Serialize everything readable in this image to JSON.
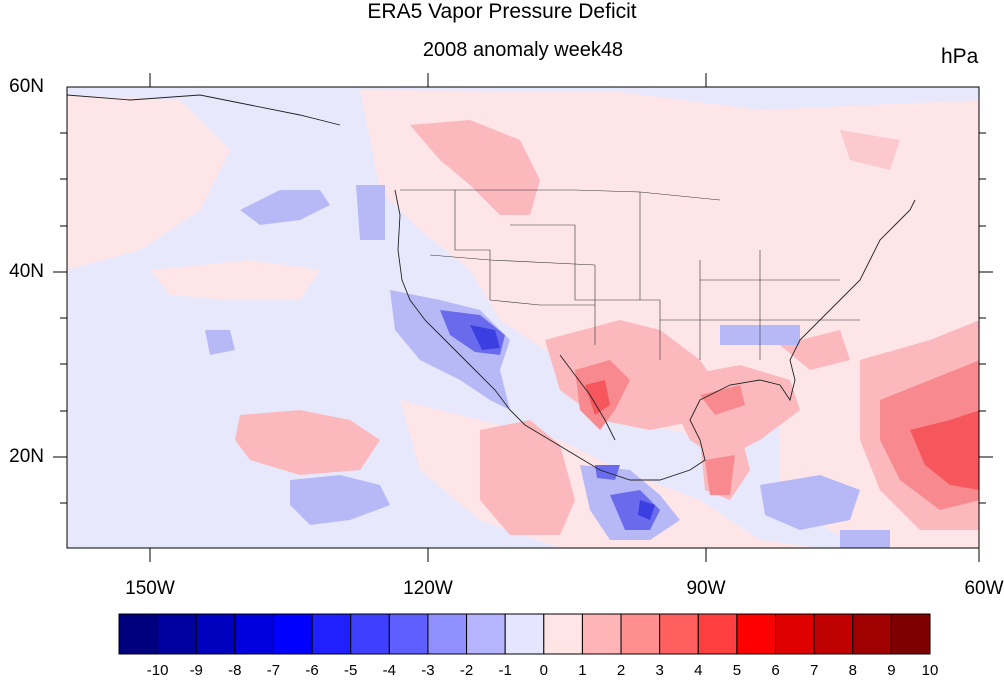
{
  "title": "ERA5 Vapor Pressure Deficit",
  "subtitle": "2008 anomaly week48",
  "units": "hPa",
  "lat_labels": [
    "60N",
    "40N",
    "20N"
  ],
  "lon_labels": [
    "150W",
    "120W",
    "90W",
    "60W"
  ],
  "colorbar": {
    "labels": [
      "-10",
      "-9",
      "-8",
      "-7",
      "-6",
      "-5",
      "-4",
      "-3",
      "-2",
      "-1",
      "0",
      "1",
      "2",
      "3",
      "4",
      "5",
      "6",
      "7",
      "8",
      "9",
      "10"
    ],
    "colors": [
      "#00007f",
      "#00009f",
      "#0000bf",
      "#0000df",
      "#0000ff",
      "#1f1fff",
      "#3f3fff",
      "#5f5fff",
      "#8f8fff",
      "#b5b5ff",
      "#e5e5ff",
      "#ffe5e5",
      "#ffb5b5",
      "#ff8f8f",
      "#ff5f5f",
      "#ff3f3f",
      "#ff0000",
      "#df0000",
      "#bf0000",
      "#9f0000",
      "#7f0000"
    ]
  },
  "map_extent": {
    "lon": [
      -160,
      -60
    ],
    "lat": [
      10,
      60
    ]
  }
}
